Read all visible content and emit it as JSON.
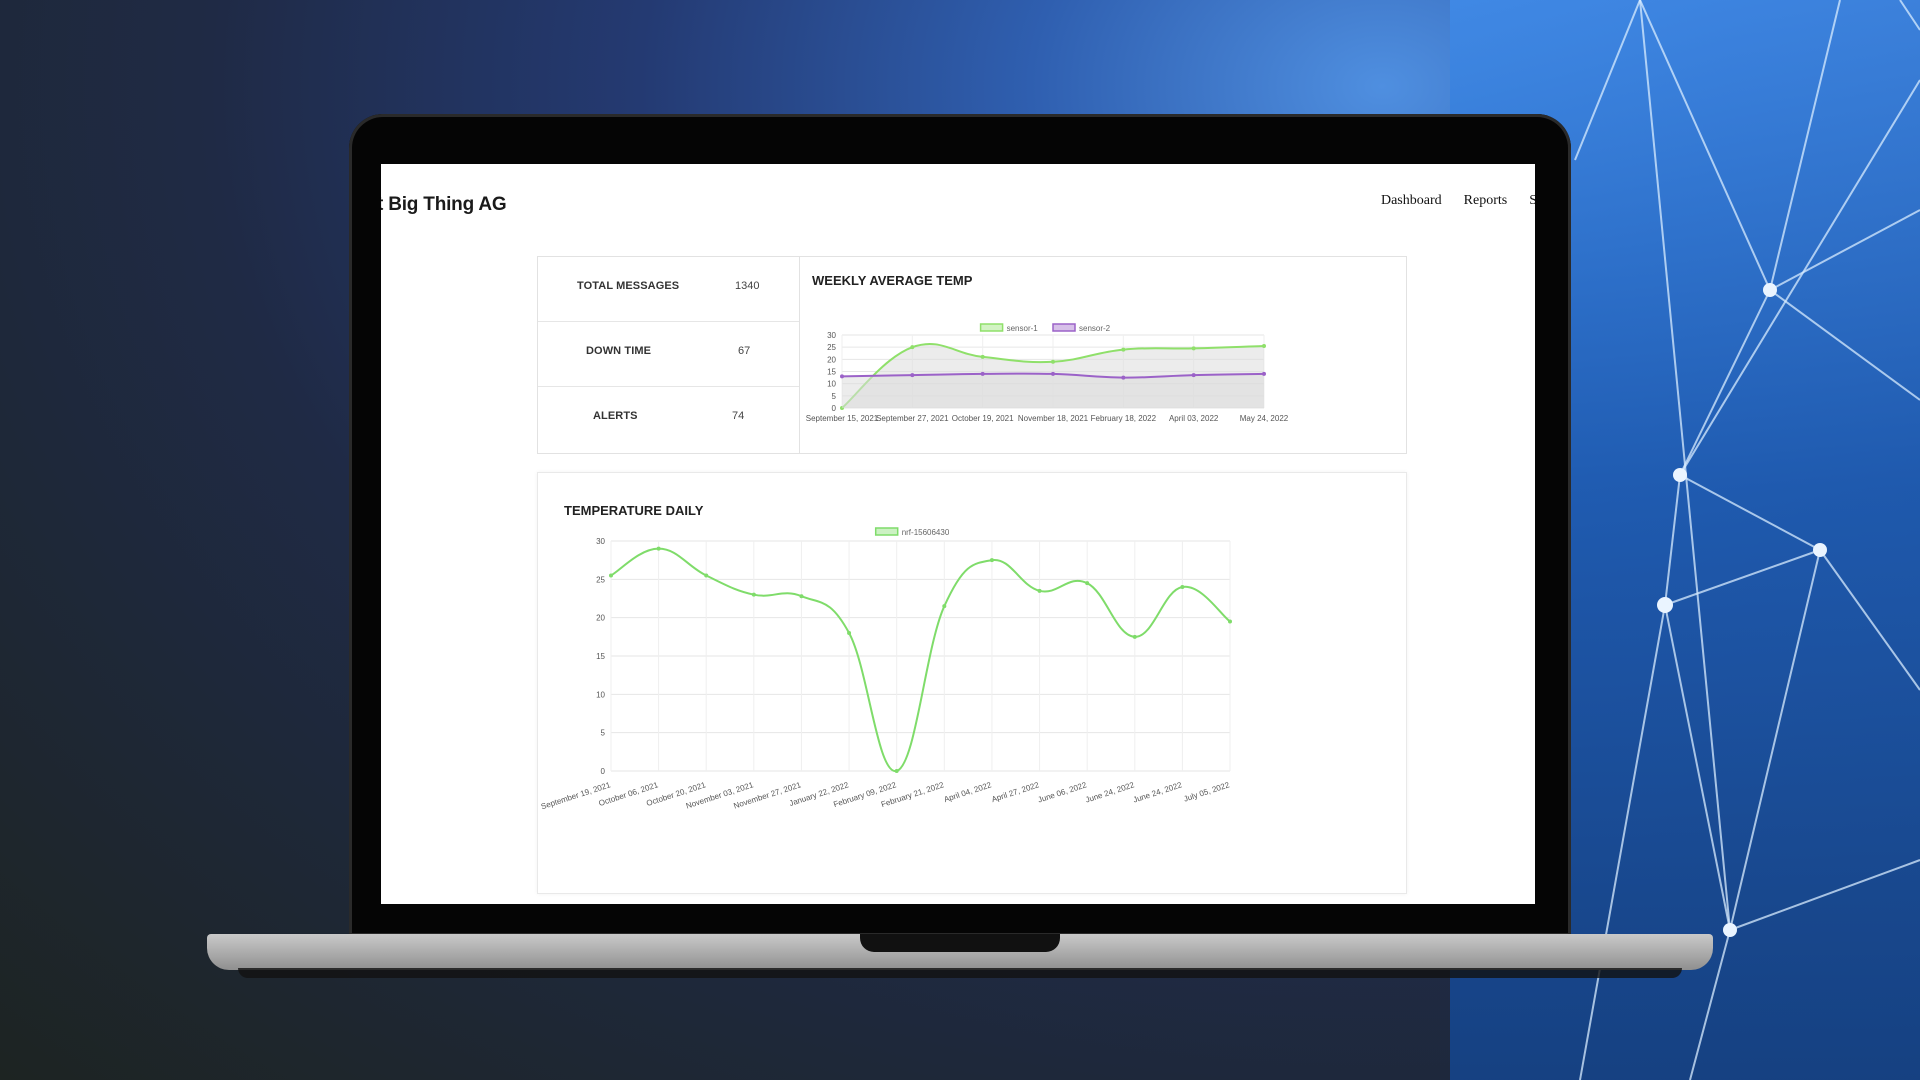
{
  "header": {
    "brand": "t Big Thing AG",
    "nav": [
      "Dashboard",
      "Reports",
      "S"
    ]
  },
  "stats": [
    {
      "label": "TOTAL MESSAGES",
      "value": "1340"
    },
    {
      "label": "DOWN TIME",
      "value": "67"
    },
    {
      "label": "ALERTS",
      "value": "74"
    }
  ],
  "colors": {
    "sensor1": "#8fe06a",
    "sensor2": "#9b62c8",
    "daily": "#7fdc6a",
    "area_fill": "#dcdcdc"
  },
  "chart_data": [
    {
      "type": "area",
      "title": "WEEKLY AVERAGE TEMP",
      "categories": [
        "September 15, 2021",
        "September 27, 2021",
        "October 19, 2021",
        "November 18, 2021",
        "February 18, 2022",
        "April 03, 2022",
        "May 24, 2022"
      ],
      "series": [
        {
          "name": "sensor-1",
          "values": [
            0,
            25,
            21,
            19,
            24,
            24.5,
            25.5
          ]
        },
        {
          "name": "sensor-2",
          "values": [
            13,
            13.5,
            14,
            14,
            12.5,
            13.5,
            14
          ]
        }
      ],
      "ylim": [
        0,
        30
      ],
      "yticks": [
        0,
        5,
        10,
        15,
        20,
        25,
        30
      ],
      "legend": "top-center",
      "grid": true
    },
    {
      "type": "line",
      "title": "TEMPERATURE DAILY",
      "categories": [
        "September 19, 2021",
        "October 06, 2021",
        "October 20, 2021",
        "November 03, 2021",
        "November 27, 2021",
        "January 22, 2022",
        "February 09, 2022",
        "February 21, 2022",
        "April 04, 2022",
        "April 27, 2022",
        "June 06, 2022",
        "June 24, 2022",
        "June 24, 2022",
        "July 05, 2022"
      ],
      "series": [
        {
          "name": "nrf-15606430",
          "values": [
            25.5,
            29,
            25.5,
            23,
            22.8,
            18,
            0,
            21.5,
            27.5,
            23.5,
            24.5,
            17.5,
            24,
            19.5
          ]
        }
      ],
      "ylim": [
        0,
        30
      ],
      "yticks": [
        0,
        5,
        10,
        15,
        20,
        25,
        30
      ],
      "legend": "top-center",
      "grid": true
    }
  ]
}
